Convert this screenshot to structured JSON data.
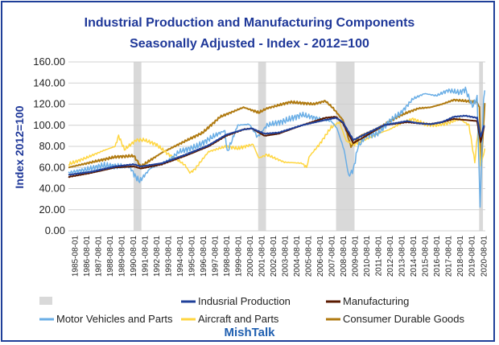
{
  "chart_data": {
    "type": "line",
    "title": "Industrial Production and Manufacturing Components",
    "subtitle": "Seasonally Adjusted - Index - 2012=100",
    "ylabel": "Index 2012=100",
    "xlabel": "",
    "ylim": [
      0,
      160
    ],
    "y_ticks": [
      "0.00",
      "20.00",
      "40.00",
      "60.00",
      "80.00",
      "100.00",
      "120.00",
      "140.00",
      "160.00"
    ],
    "x_ticks": [
      "1985-08-01",
      "1986-08-01",
      "1987-08-01",
      "1988-08-01",
      "1989-08-01",
      "1990-08-01",
      "1991-08-01",
      "1992-08-01",
      "1993-08-01",
      "1994-08-01",
      "1995-08-01",
      "1996-08-01",
      "1997-08-01",
      "1998-08-01",
      "1999-08-01",
      "2000-08-01",
      "2001-08-01",
      "2002-08-01",
      "2003-08-01",
      "2004-08-01",
      "2005-08-01",
      "2006-08-01",
      "2007-08-01",
      "2008-08-01",
      "2009-08-01",
      "2010-08-01",
      "2011-08-01",
      "2012-08-01",
      "2013-08-01",
      "2014-08-01",
      "2015-08-01",
      "2016-08-01",
      "2017-08-01",
      "2018-08-01",
      "2019-08-01",
      "2020-08-01"
    ],
    "x_range": [
      1985.0,
      2020.7
    ],
    "grid": "horizontal",
    "legend_position": "bottom",
    "recessions": [
      [
        1990.58,
        1991.25
      ],
      [
        2001.25,
        2001.92
      ],
      [
        2007.92,
        2009.5
      ],
      [
        2020.17,
        2020.5
      ]
    ],
    "recession_legend": "",
    "series": [
      {
        "name": "Indusrial Production",
        "color": "#1f3f99",
        "width": 2,
        "x": [
          1985.0,
          1987.0,
          1989.0,
          1990.6,
          1991.2,
          1993.0,
          1995.0,
          1997.0,
          1998.5,
          2000.0,
          2000.7,
          2001.8,
          2003.0,
          2005.0,
          2007.0,
          2007.9,
          2008.5,
          2009.4,
          2010.5,
          2012.0,
          2014.0,
          2014.9,
          2016.0,
          2017.0,
          2018.0,
          2019.0,
          2020.0,
          2020.3,
          2020.6
        ],
        "y": [
          53,
          56,
          61,
          63,
          61,
          64,
          72,
          81,
          91,
          96,
          97,
          92,
          93,
          100,
          105,
          107,
          103,
          86,
          92,
          100,
          104,
          102,
          101,
          103,
          108,
          109,
          107,
          89,
          100
        ]
      },
      {
        "name": "Manufacturing",
        "color": "#5a1a00",
        "width": 2,
        "x": [
          1985.0,
          1987.0,
          1989.0,
          1990.6,
          1991.2,
          1993.0,
          1995.0,
          1997.0,
          1998.5,
          2000.0,
          2000.7,
          2001.8,
          2003.0,
          2005.0,
          2007.0,
          2007.9,
          2008.5,
          2009.4,
          2010.5,
          2012.0,
          2014.0,
          2014.9,
          2016.0,
          2017.0,
          2018.0,
          2019.0,
          2020.0,
          2020.3,
          2020.6
        ],
        "y": [
          51,
          55,
          60,
          61,
          59,
          63,
          71,
          80,
          90,
          96,
          97,
          90,
          92,
          100,
          107,
          108,
          102,
          83,
          90,
          100,
          103,
          102,
          101,
          103,
          106,
          105,
          104,
          84,
          99
        ]
      },
      {
        "name": "Motor Vehicles and Parts",
        "color": "#6aaee6",
        "width": 1.5,
        "x": [
          1985.0,
          1986.5,
          1988.0,
          1989.5,
          1990.3,
          1990.7,
          1991.1,
          1992.0,
          1993.5,
          1994.5,
          1996.0,
          1997.5,
          1998.4,
          1998.6,
          1999.5,
          2000.5,
          2001.2,
          2002.0,
          2003.5,
          2005.0,
          2006.5,
          2007.5,
          2008.0,
          2008.6,
          2009.0,
          2009.4,
          2009.8,
          2010.5,
          2011.5,
          2012.5,
          2013.5,
          2014.5,
          2015.5,
          2016.5,
          2017.5,
          2018.5,
          2019.0,
          2019.6,
          2020.0,
          2020.25,
          2020.35,
          2020.55,
          2020.65
        ],
        "y": [
          55,
          58,
          62,
          61,
          60,
          52,
          47,
          59,
          66,
          75,
          80,
          90,
          95,
          74,
          100,
          101,
          89,
          100,
          104,
          110,
          106,
          104,
          97,
          77,
          52,
          58,
          80,
          90,
          92,
          104,
          112,
          125,
          130,
          128,
          133,
          131,
          134,
          118,
          126,
          21,
          58,
          124,
          133
        ]
      },
      {
        "name": "Aircraft and Parts",
        "color": "#ffd640",
        "width": 1.5,
        "x": [
          1985.0,
          1986.5,
          1988.0,
          1989.0,
          1989.3,
          1989.8,
          1990.8,
          1991.5,
          1992.5,
          1993.5,
          1994.5,
          1995.0,
          1995.4,
          1995.8,
          1997.0,
          1998.5,
          1999.5,
          2000.8,
          2001.3,
          2002.0,
          2003.5,
          2005.0,
          2005.4,
          2005.6,
          2006.5,
          2007.5,
          2008.2,
          2008.8,
          2009.5,
          2010.5,
          2011.5,
          2012.5,
          2013.5,
          2014.5,
          2015.5,
          2016.5,
          2017.5,
          2018.5,
          2019.3,
          2019.8,
          2020.1,
          2020.3,
          2020.5,
          2020.65
        ],
        "y": [
          63,
          69,
          76,
          80,
          90,
          77,
          86,
          86,
          82,
          73,
          66,
          62,
          55,
          58,
          75,
          80,
          78,
          82,
          69,
          72,
          65,
          64,
          60,
          70,
          82,
          98,
          103,
          85,
          82,
          87,
          92,
          96,
          102,
          106,
          101,
          100,
          102,
          106,
          100,
          65,
          98,
          63,
          70,
          78
        ]
      },
      {
        "name": "Consumer Durable Goods",
        "color": "#b07a10",
        "width": 2,
        "x": [
          1985.0,
          1987.0,
          1989.0,
          1990.6,
          1991.2,
          1993.0,
          1995.0,
          1996.5,
          1998.0,
          2000.0,
          2001.3,
          2002.0,
          2004.0,
          2006.0,
          2007.0,
          2007.6,
          2008.5,
          2009.2,
          2010.0,
          2011.0,
          2012.0,
          2013.0,
          2014.0,
          2015.0,
          2016.0,
          2017.0,
          2018.0,
          2019.0,
          2020.0,
          2020.2,
          2020.35,
          2020.55,
          2020.65
        ],
        "y": [
          60,
          65,
          70,
          71,
          61,
          74,
          85,
          93,
          108,
          117,
          112,
          116,
          122,
          120,
          123,
          117,
          105,
          80,
          90,
          94,
          100,
          107,
          112,
          116,
          117,
          120,
          124,
          123,
          122,
          117,
          63,
          100,
          121
        ]
      }
    ]
  },
  "source_label": "MishTalk"
}
